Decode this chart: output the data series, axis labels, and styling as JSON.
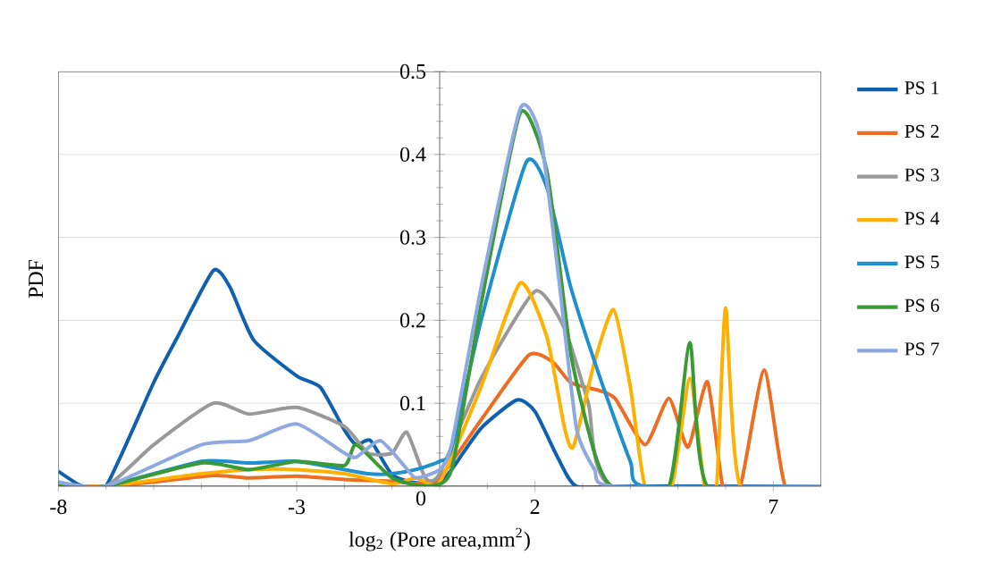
{
  "chart_data": {
    "type": "line",
    "xlabel": "log$_{2}$ (Pore area,mm$^{2}$)",
    "ylabel": "PDF",
    "xlim": [
      -8,
      8
    ],
    "xticks": [
      -8,
      -3,
      2,
      7
    ],
    "ylim": [
      0,
      0.5
    ],
    "yticks": [
      0,
      0.1,
      0.2,
      0.3,
      0.4,
      0.5
    ],
    "grid": "y",
    "legend": "right",
    "marker": "none",
    "line_style": "solid",
    "series": [
      {
        "name": "PS 1",
        "color": "#1060b0",
        "x": [
          -8,
          -7.5,
          -7,
          -6,
          -5.5,
          -4.75,
          -4.4,
          -3.9,
          -3,
          -2.5,
          -2,
          -1.75,
          -1.45,
          -1,
          -0.5,
          0,
          0.25,
          0.87,
          1.62,
          2,
          2.5,
          2.87,
          4,
          8
        ],
        "values": [
          0.018,
          0,
          0,
          0.125,
          0.18,
          0.26,
          0.24,
          0.176,
          0.133,
          0.119,
          0.068,
          0.05,
          0.055,
          0.014,
          0.004,
          0.005,
          0.02,
          0.07,
          0.104,
          0.09,
          0.032,
          0,
          0,
          0
        ]
      },
      {
        "name": "PS 2",
        "color": "#ed6d22",
        "x": [
          -8,
          -7,
          -6,
          -4.75,
          -4,
          -3,
          -2,
          -1,
          -0.5,
          0,
          0.87,
          1.87,
          2.37,
          2.75,
          3.37,
          3.69,
          4.31,
          4.81,
          5.21,
          5.62,
          5.94,
          6.31,
          6.81,
          7.25,
          8
        ],
        "values": [
          0,
          0,
          0.005,
          0.013,
          0.01,
          0.012,
          0.008,
          0.006,
          0.003,
          0.01,
          0.08,
          0.158,
          0.15,
          0.125,
          0.115,
          0.105,
          0.05,
          0.106,
          0.047,
          0.126,
          0,
          0,
          0.14,
          0,
          0
        ]
      },
      {
        "name": "PS 3",
        "color": "#999999",
        "x": [
          -8,
          -7,
          -6,
          -4.75,
          -4,
          -3,
          -2,
          -1.5,
          -1,
          -0.69,
          -0.3,
          0,
          0.87,
          2,
          2.62,
          3.12,
          3.62,
          8
        ],
        "values": [
          0.005,
          0,
          0.05,
          0.1,
          0.087,
          0.095,
          0.072,
          0.04,
          0.04,
          0.065,
          0.01,
          0.015,
          0.13,
          0.235,
          0.19,
          0.1,
          0,
          0
        ]
      },
      {
        "name": "PS 4",
        "color": "#ffb000",
        "x": [
          -8,
          -7,
          -5,
          -4,
          -3,
          -2,
          -1,
          -0.5,
          0,
          0.87,
          1.69,
          2.25,
          2.62,
          2.81,
          3.25,
          3.65,
          4,
          4.31,
          4.87,
          5.25,
          5.56,
          5.81,
          6,
          6.31,
          8
        ],
        "values": [
          0,
          0,
          0.015,
          0.02,
          0.02,
          0.015,
          0.003,
          0.01,
          0.005,
          0.12,
          0.245,
          0.18,
          0.07,
          0.048,
          0.15,
          0.213,
          0.12,
          0,
          0,
          0.13,
          0,
          0,
          0.215,
          0,
          0
        ]
      },
      {
        "name": "PS 5",
        "color": "#1f8fd0",
        "x": [
          -8,
          -7,
          -5,
          -4,
          -3,
          -2,
          -1.5,
          -1,
          -0.5,
          0,
          0.25,
          0.87,
          1.81,
          2.25,
          2.75,
          3.37,
          4,
          4.31,
          8
        ],
        "values": [
          0,
          0,
          0.03,
          0.028,
          0.03,
          0.02,
          0.015,
          0.015,
          0.02,
          0.03,
          0.045,
          0.2,
          0.39,
          0.36,
          0.24,
          0.13,
          0.03,
          0,
          0
        ]
      },
      {
        "name": "PS 6",
        "color": "#3a9a35",
        "x": [
          -8,
          -7,
          -5,
          -4,
          -3,
          -2,
          -1.75,
          -1,
          -0.25,
          0.25,
          0.87,
          1.69,
          2.25,
          2.75,
          3.25,
          3.62,
          4.81,
          5.25,
          5.62,
          8
        ],
        "values": [
          0,
          0,
          0.028,
          0.02,
          0.03,
          0.025,
          0.05,
          0.01,
          0,
          0.02,
          0.22,
          0.45,
          0.38,
          0.16,
          0.04,
          0,
          0,
          0.173,
          0,
          0
        ]
      },
      {
        "name": "PS 7",
        "color": "#8ea9e0",
        "x": [
          -8,
          -7,
          -5,
          -4,
          -3,
          -2,
          -1.75,
          -1.25,
          -0.75,
          -0.5,
          0,
          0.25,
          0.87,
          1.69,
          2.12,
          2.5,
          2.87,
          3.25,
          3.62,
          8
        ],
        "values": [
          0.005,
          0,
          0.05,
          0.055,
          0.075,
          0.04,
          0.035,
          0.055,
          0.025,
          0.01,
          0.02,
          0.05,
          0.24,
          0.455,
          0.42,
          0.25,
          0.07,
          0.02,
          0,
          0
        ]
      }
    ]
  }
}
